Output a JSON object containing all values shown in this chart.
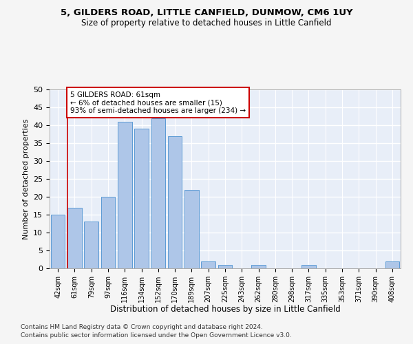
{
  "title1": "5, GILDERS ROAD, LITTLE CANFIELD, DUNMOW, CM6 1UY",
  "title2": "Size of property relative to detached houses in Little Canfield",
  "xlabel": "Distribution of detached houses by size in Little Canfield",
  "ylabel": "Number of detached properties",
  "categories": [
    "42sqm",
    "61sqm",
    "79sqm",
    "97sqm",
    "116sqm",
    "134sqm",
    "152sqm",
    "170sqm",
    "189sqm",
    "207sqm",
    "225sqm",
    "243sqm",
    "262sqm",
    "280sqm",
    "298sqm",
    "317sqm",
    "335sqm",
    "353sqm",
    "371sqm",
    "390sqm",
    "408sqm"
  ],
  "values": [
    15,
    17,
    13,
    20,
    41,
    39,
    42,
    37,
    22,
    2,
    1,
    0,
    1,
    0,
    0,
    1,
    0,
    0,
    0,
    0,
    2
  ],
  "bar_color": "#aec6e8",
  "bar_edge_color": "#5b9bd5",
  "red_line_index": 1,
  "red_line_color": "#cc0000",
  "annotation_text": "5 GILDERS ROAD: 61sqm\n← 6% of detached houses are smaller (15)\n93% of semi-detached houses are larger (234) →",
  "annotation_box_color": "#ffffff",
  "annotation_box_edge_color": "#cc0000",
  "ylim": [
    0,
    50
  ],
  "yticks": [
    0,
    5,
    10,
    15,
    20,
    25,
    30,
    35,
    40,
    45,
    50
  ],
  "background_color": "#e8eef8",
  "grid_color": "#ffffff",
  "fig_bg_color": "#f5f5f5",
  "footnote1": "Contains HM Land Registry data © Crown copyright and database right 2024.",
  "footnote2": "Contains public sector information licensed under the Open Government Licence v3.0."
}
